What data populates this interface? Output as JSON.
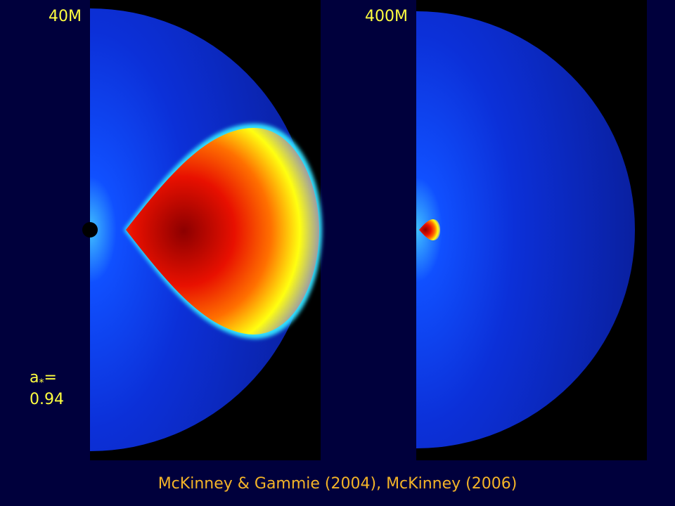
{
  "panels": [
    {
      "label": "40M"
    },
    {
      "label": "400M"
    }
  ],
  "spin": {
    "name": "a",
    "subscript": "*",
    "sign": "=",
    "value": "0.94"
  },
  "citation": "McKinney & Gammie (2004), McKinney (2006)"
}
